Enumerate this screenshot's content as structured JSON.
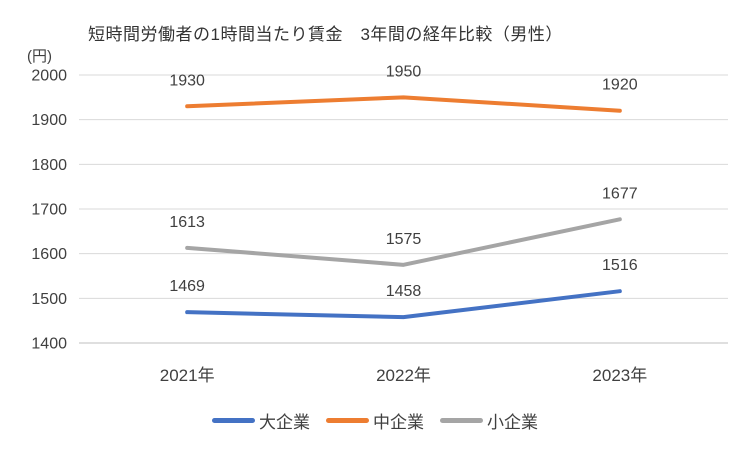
{
  "title": "短時間労働者の1時間当たり賃金　3年間の経年比較（男性）",
  "y_unit": "(円)",
  "colors": {
    "grid": "#d9d9d9",
    "axis_line": "#bfbfbf",
    "text": "#404040"
  },
  "chart_data": {
    "type": "line",
    "title": "短時間労働者の1時間当たり賃金　3年間の経年比較（男性）",
    "categories": [
      "2021年",
      "2022年",
      "2023年"
    ],
    "series": [
      {
        "name": "大企業",
        "color": "#4472C4",
        "values": [
          1469,
          1458,
          1516
        ]
      },
      {
        "name": "中企業",
        "color": "#ED7D31",
        "values": [
          1930,
          1950,
          1920
        ]
      },
      {
        "name": "小企業",
        "color": "#A5A5A5",
        "values": [
          1613,
          1575,
          1677
        ]
      }
    ],
    "ylabel": "(円)",
    "ylim": [
      1400,
      2000
    ],
    "yticks": [
      2000,
      1900,
      1800,
      1700,
      1600,
      1500,
      1400
    ],
    "grid": true,
    "data_labels": true,
    "legend_position": "bottom"
  }
}
